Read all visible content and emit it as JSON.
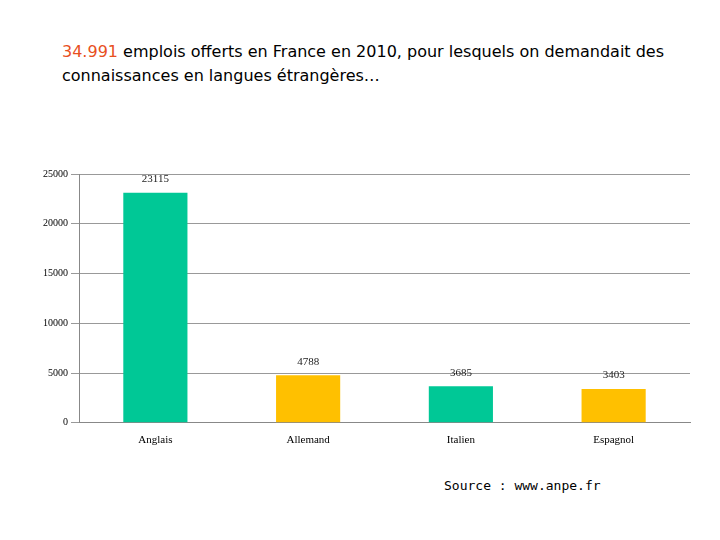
{
  "chart_data": {
    "type": "bar",
    "title": "34.991 emplois offerts en France en 2010, pour lesquels on demandait des connaissances en langues étrangères…",
    "annotations": [
      "Source : www.anpe.fr"
    ],
    "categories": [
      "Anglais",
      "Allemand",
      "Italien",
      "Espagnol"
    ],
    "values": [
      23115,
      4788,
      3685,
      3403
    ],
    "colors": [
      "#00c896",
      "#ffc000",
      "#00c896",
      "#ffc000"
    ],
    "ylim": [
      0,
      25000
    ],
    "yticks": [
      0,
      5000,
      10000,
      15000,
      20000,
      25000
    ],
    "grid": true,
    "data_labels": true
  }
}
